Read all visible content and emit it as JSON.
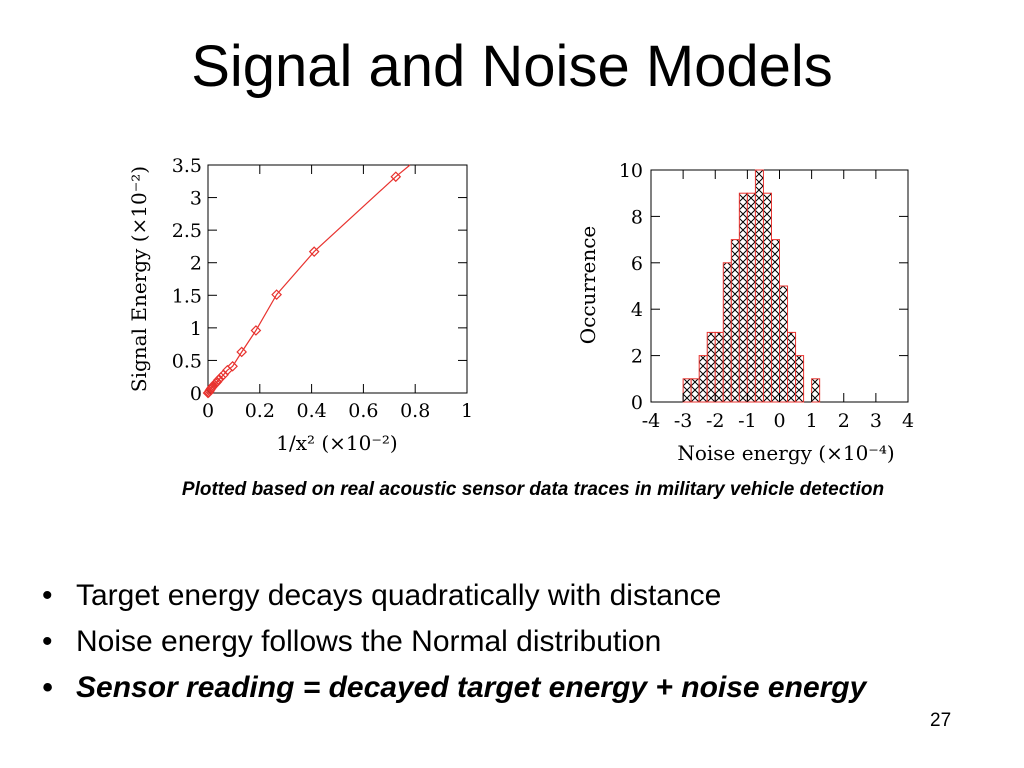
{
  "slide": {
    "title": "Signal and Noise Models",
    "caption": "Plotted based on real acoustic sensor data traces in military vehicle detection",
    "bullets": [
      "Target energy decays quadratically with distance",
      "Noise energy follows the Normal distribution",
      "Sensor reading = decayed target energy + noise energy"
    ],
    "page_number": "27"
  },
  "colors": {
    "series": "#e8332f",
    "axis": "#000000",
    "fill_pattern": "crosshatch"
  },
  "chart_data": [
    {
      "type": "line",
      "xlabel": "1/x² (×10⁻²)",
      "ylabel": "Signal Energy (×10⁻²)",
      "xlim": [
        0,
        1
      ],
      "ylim": [
        0,
        3.5
      ],
      "x_ticks": [
        "0",
        "0.2",
        "0.4",
        "0.6",
        "0.8",
        "1"
      ],
      "y_ticks": [
        "0",
        "0.5",
        "1",
        "1.5",
        "2",
        "2.5",
        "3",
        "3.5"
      ],
      "marker": "diamond",
      "series": [
        {
          "x": [
            0.0,
            0.003,
            0.006,
            0.009,
            0.012,
            0.016,
            0.02,
            0.025,
            0.03,
            0.035,
            0.04,
            0.05,
            0.06,
            0.075,
            0.095,
            0.13,
            0.185,
            0.265,
            0.41,
            0.725
          ],
          "y": [
            0.0,
            0.01,
            0.03,
            0.05,
            0.07,
            0.09,
            0.11,
            0.13,
            0.15,
            0.17,
            0.2,
            0.24,
            0.28,
            0.35,
            0.41,
            0.63,
            0.96,
            1.51,
            2.17,
            3.32
          ]
        }
      ],
      "extends_to": [
        0.78,
        3.5
      ],
      "grid": false
    },
    {
      "type": "bar",
      "xlabel": "Noise energy (×10⁻⁴)",
      "ylabel": "Occurrence",
      "xlim": [
        -4,
        4
      ],
      "ylim": [
        0,
        10
      ],
      "x_ticks": [
        "-4",
        "-3",
        "-2",
        "-1",
        "0",
        "1",
        "2",
        "3",
        "4"
      ],
      "y_ticks": [
        "0",
        "2",
        "4",
        "6",
        "8",
        "10"
      ],
      "bin_width": 0.25,
      "bins": [
        {
          "x0": -3.0,
          "value": 1
        },
        {
          "x0": -2.75,
          "value": 1
        },
        {
          "x0": -2.5,
          "value": 2
        },
        {
          "x0": -2.25,
          "value": 3
        },
        {
          "x0": -2.0,
          "value": 3
        },
        {
          "x0": -1.75,
          "value": 6
        },
        {
          "x0": -1.5,
          "value": 7
        },
        {
          "x0": -1.25,
          "value": 9
        },
        {
          "x0": -1.0,
          "value": 9
        },
        {
          "x0": -0.75,
          "value": 10
        },
        {
          "x0": -0.5,
          "value": 9
        },
        {
          "x0": -0.25,
          "value": 7
        },
        {
          "x0": 0.0,
          "value": 5
        },
        {
          "x0": 0.25,
          "value": 3
        },
        {
          "x0": 0.5,
          "value": 2
        },
        {
          "x0": 1.0,
          "value": 1
        }
      ],
      "grid": false
    }
  ]
}
